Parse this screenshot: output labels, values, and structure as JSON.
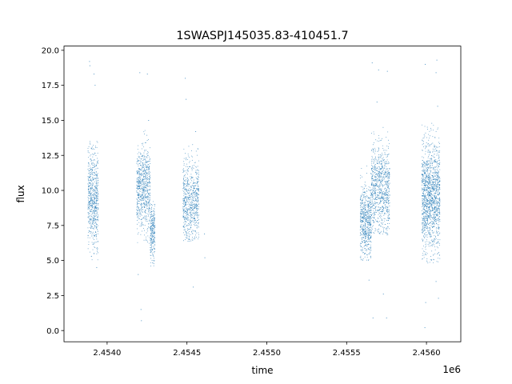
{
  "chart_data": {
    "type": "scatter",
    "title": "1SWASPJ145035.83-410451.7",
    "xlabel": "time",
    "ylabel": "flux",
    "x_offset_label": "1e6",
    "xlim": [
      2453730,
      2456215
    ],
    "ylim": [
      -0.8,
      20.3
    ],
    "x_ticks": [
      2454000,
      2454500,
      2455000,
      2455500,
      2456000
    ],
    "x_tick_labels": [
      "2.4540",
      "2.4545",
      "2.4550",
      "2.4555",
      "2.4560"
    ],
    "y_ticks": [
      0.0,
      2.5,
      5.0,
      7.5,
      10.0,
      12.5,
      15.0,
      17.5,
      20.0
    ],
    "y_tick_labels": [
      "0.0",
      "2.5",
      "5.0",
      "7.5",
      "10.0",
      "12.5",
      "15.0",
      "17.5",
      "20.0"
    ],
    "grid": false,
    "legend": "none",
    "marker_color": "#1f77b4",
    "clusters": [
      {
        "x_range": [
          2453880,
          2453945
        ],
        "y_center": 9.4,
        "y_spread": 1.7,
        "y_min": 5.0,
        "y_max": 13.5,
        "points": 650
      },
      {
        "x_range": [
          2454185,
          2454270
        ],
        "y_center": 10.0,
        "y_spread": 1.5,
        "y_min": 6.2,
        "y_max": 14.5,
        "points": 700
      },
      {
        "x_range": [
          2454270,
          2454300
        ],
        "y_center": 7.0,
        "y_spread": 1.0,
        "y_min": 4.6,
        "y_max": 9.5,
        "points": 250
      },
      {
        "x_range": [
          2454475,
          2454575
        ],
        "y_center": 9.2,
        "y_spread": 1.5,
        "y_min": 6.3,
        "y_max": 13.3,
        "points": 700
      },
      {
        "x_range": [
          2455585,
          2455655
        ],
        "y_center": 7.8,
        "y_spread": 1.3,
        "y_min": 5.0,
        "y_max": 12.0,
        "points": 600
      },
      {
        "x_range": [
          2455655,
          2455770
        ],
        "y_center": 10.2,
        "y_spread": 1.6,
        "y_min": 6.8,
        "y_max": 14.5,
        "points": 850
      },
      {
        "x_range": [
          2455970,
          2456085
        ],
        "y_center": 9.5,
        "y_spread": 1.9,
        "y_min": 4.8,
        "y_max": 14.8,
        "points": 1400
      }
    ],
    "outliers": [
      {
        "x": 2453890,
        "y": 19.2
      },
      {
        "x": 2453892,
        "y": 18.9
      },
      {
        "x": 2453918,
        "y": 18.3
      },
      {
        "x": 2453925,
        "y": 17.5
      },
      {
        "x": 2453935,
        "y": 4.5
      },
      {
        "x": 2454205,
        "y": 18.4
      },
      {
        "x": 2454215,
        "y": 0.7
      },
      {
        "x": 2454212,
        "y": 1.5
      },
      {
        "x": 2454252,
        "y": 18.3
      },
      {
        "x": 2454260,
        "y": 15.0
      },
      {
        "x": 2454195,
        "y": 4.0
      },
      {
        "x": 2454490,
        "y": 18.0
      },
      {
        "x": 2454495,
        "y": 16.5
      },
      {
        "x": 2454540,
        "y": 3.1
      },
      {
        "x": 2454610,
        "y": 6.9
      },
      {
        "x": 2454612,
        "y": 5.2
      },
      {
        "x": 2454555,
        "y": 14.2
      },
      {
        "x": 2455660,
        "y": 19.1
      },
      {
        "x": 2455700,
        "y": 18.6
      },
      {
        "x": 2455755,
        "y": 18.5
      },
      {
        "x": 2455665,
        "y": 0.9
      },
      {
        "x": 2455750,
        "y": 0.9
      },
      {
        "x": 2455730,
        "y": 2.6
      },
      {
        "x": 2455640,
        "y": 3.6
      },
      {
        "x": 2455690,
        "y": 16.3
      },
      {
        "x": 2455992,
        "y": 19.0
      },
      {
        "x": 2456065,
        "y": 19.3
      },
      {
        "x": 2456060,
        "y": 18.4
      },
      {
        "x": 2455990,
        "y": 0.2
      },
      {
        "x": 2455995,
        "y": 2.0
      },
      {
        "x": 2456075,
        "y": 2.3
      },
      {
        "x": 2456060,
        "y": 3.5
      },
      {
        "x": 2456070,
        "y": 16.0
      }
    ]
  }
}
